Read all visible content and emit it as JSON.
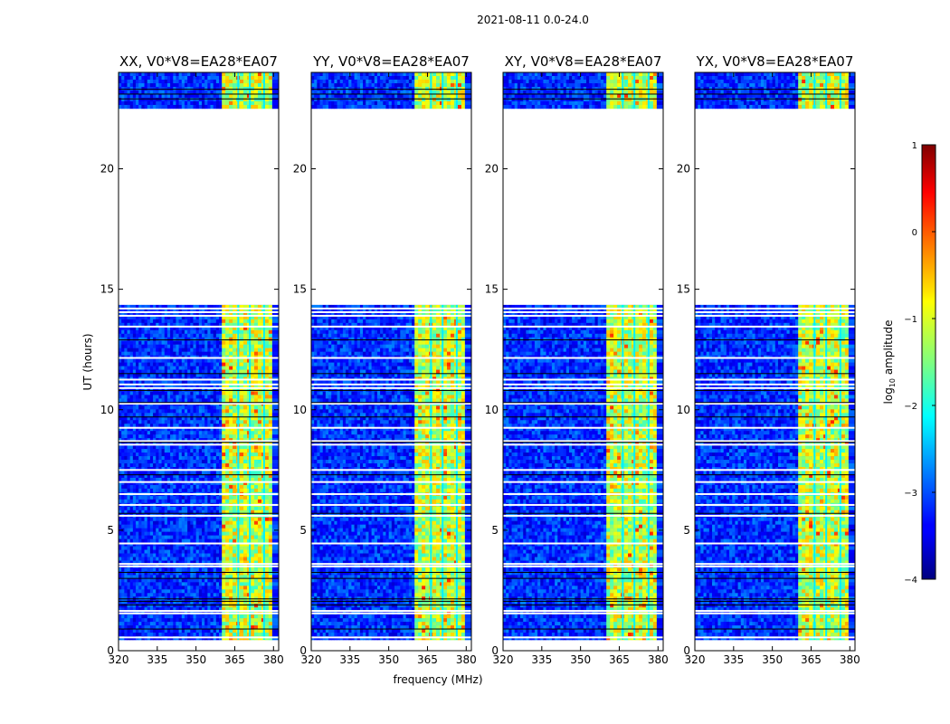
{
  "figure_title": "2021-08-11 0.0-24.0",
  "chart_data": {
    "type": "heatmap",
    "title": "2021-08-11 0.0-24.0",
    "xlabel": "frequency (MHz)",
    "ylabel": "UT (hours)",
    "xlim": [
      320,
      382
    ],
    "ylim": [
      0,
      24
    ],
    "xticks": [
      320,
      335,
      350,
      365,
      380
    ],
    "yticks": [
      0,
      5,
      10,
      15,
      20
    ],
    "colorbar": {
      "label": "log",
      "label_sub": "10",
      "label_rest": " amplitude",
      "range": [
        -4,
        1
      ],
      "ticks": [
        1,
        0,
        -1,
        -2,
        -3,
        -4
      ],
      "colormap": "jet"
    },
    "panels": [
      {
        "title": "XX, V0*V8=EA28*EA07",
        "pol": "XX"
      },
      {
        "title": "YY, V0*V8=EA28*EA07",
        "pol": "YY"
      },
      {
        "title": "XY, V0*V8=EA28*EA07",
        "pol": "XY"
      },
      {
        "title": "YX, V0*V8=EA28*EA07",
        "pol": "YX"
      }
    ],
    "data_gaps_hours": [
      [
        0,
        0.45
      ],
      [
        14.35,
        22.5
      ]
    ],
    "bright_band_mhz": [
      360,
      379.5
    ],
    "background_log10_amplitude": -3.2,
    "band_log10_amplitude": -1.2
  }
}
